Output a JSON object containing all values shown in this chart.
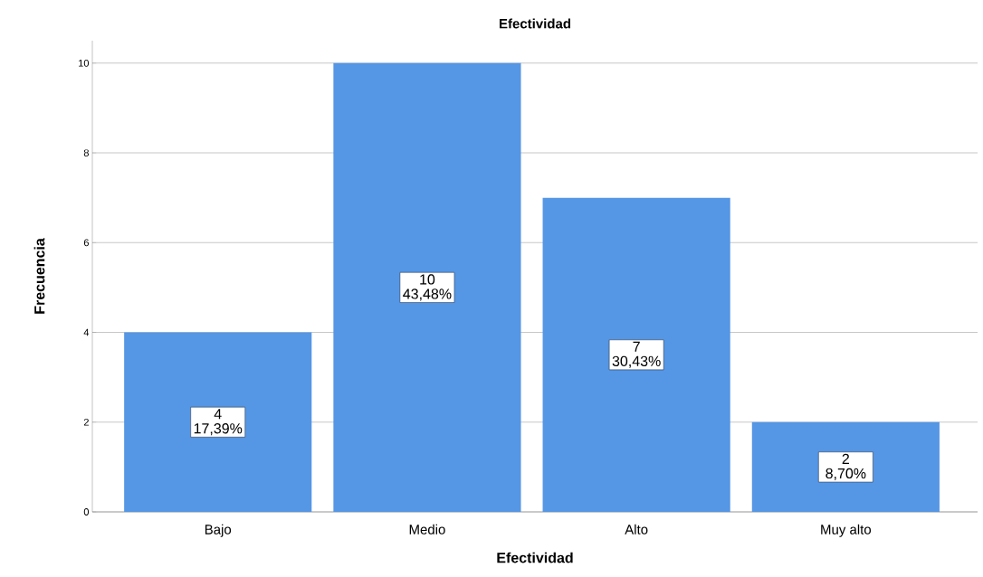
{
  "chart_data": {
    "type": "bar",
    "title": "Efectividad",
    "xlabel": "Efectividad",
    "ylabel": "Frecuencia",
    "categories": [
      "Bajo",
      "Medio",
      "Alto",
      "Muy alto"
    ],
    "values": [
      4,
      10,
      7,
      2
    ],
    "color": "#5596e5",
    "value_labels": [
      "4 17,39%",
      "10 43,48%",
      "7 30,43%",
      "2 8,70%"
    ],
    "ylim": [
      0,
      10.5
    ],
    "yticks": [
      0,
      2,
      4,
      6,
      8,
      10
    ],
    "grid": "y"
  }
}
